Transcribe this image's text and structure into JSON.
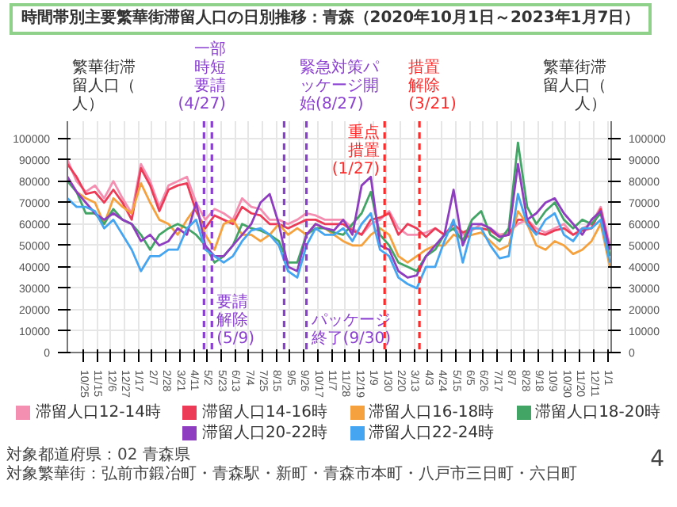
{
  "chart_data": {
    "type": "line",
    "title": "時間帯別主要繁華街滞留人口の日別推移：青森（2020年10月1日～2023年1月7日）",
    "ylabel": "繁華街滞留人口（人）",
    "y2label": "繁華街滞留人口（人）",
    "x": [
      "2020-10-01",
      "2020-10-15",
      "2020-10-29",
      "2020-11-12",
      "2020-11-26",
      "2020-12-10",
      "2020-12-24",
      "2021-01-07",
      "2021-01-21",
      "2021-02-04",
      "2021-02-18",
      "2021-03-04",
      "2021-03-18",
      "2021-04-01",
      "2021-04-15",
      "2021-04-29",
      "2021-05-13",
      "2021-05-27",
      "2021-06-10",
      "2021-06-24",
      "2021-07-08",
      "2021-07-22",
      "2021-08-05",
      "2021-08-19",
      "2021-09-02",
      "2021-09-16",
      "2021-09-30",
      "2021-10-14",
      "2021-10-28",
      "2021-11-11",
      "2021-11-25",
      "2021-12-09",
      "2021-12-23",
      "2022-01-06",
      "2022-01-20",
      "2022-02-03",
      "2022-02-17",
      "2022-03-03",
      "2022-03-17",
      "2022-03-31",
      "2022-04-14",
      "2022-04-28",
      "2022-05-12",
      "2022-05-26",
      "2022-06-09",
      "2022-06-23",
      "2022-07-07",
      "2022-07-21",
      "2022-08-04",
      "2022-08-18",
      "2022-09-01",
      "2022-09-15",
      "2022-09-29",
      "2022-10-13",
      "2022-10-27",
      "2022-11-10",
      "2022-11-24",
      "2022-12-08",
      "2022-12-22",
      "2023-01-05"
    ],
    "series": [
      {
        "name": "滞留人口12-14時",
        "color": "#f48fb1",
        "values": [
          90000,
          80000,
          75000,
          78000,
          72000,
          80000,
          72000,
          65000,
          88000,
          80000,
          68000,
          78000,
          80000,
          82000,
          70000,
          62000,
          67000,
          65000,
          62000,
          72000,
          68000,
          67000,
          62000,
          62000,
          60000,
          62000,
          65000,
          64000,
          62000,
          62000,
          62000,
          58000,
          55000,
          60000,
          62000,
          66000,
          58000,
          55000,
          55000,
          56000,
          58000,
          55000,
          58000,
          55000,
          57000,
          60000,
          58000,
          55000,
          56000,
          60000,
          62000,
          58000,
          56000,
          58000,
          60000,
          55000,
          58000,
          60000,
          68000,
          50000
        ]
      },
      {
        "name": "滞留人口14-16時",
        "color": "#ec3b57",
        "values": [
          88000,
          82000,
          74000,
          75000,
          70000,
          76000,
          70000,
          62000,
          86000,
          78000,
          66000,
          76000,
          78000,
          79000,
          66000,
          58000,
          64000,
          62000,
          60000,
          68000,
          65000,
          64000,
          60000,
          60000,
          58000,
          60000,
          62000,
          62000,
          60000,
          60000,
          60000,
          57000,
          55000,
          62000,
          63000,
          65000,
          55000,
          60000,
          58000,
          54000,
          58000,
          55000,
          60000,
          56000,
          58000,
          58000,
          57000,
          54000,
          55000,
          62000,
          62000,
          56000,
          55000,
          57000,
          58000,
          55000,
          57000,
          58000,
          67000,
          48000
        ]
      },
      {
        "name": "滞留人口16-18時",
        "color": "#f5a23e",
        "values": [
          82000,
          75000,
          72000,
          70000,
          60000,
          72000,
          68000,
          65000,
          79000,
          70000,
          62000,
          60000,
          55000,
          62000,
          68000,
          55000,
          48000,
          60000,
          62000,
          55000,
          55000,
          52000,
          55000,
          60000,
          55000,
          58000,
          55000,
          60000,
          58000,
          55000,
          52000,
          50000,
          50000,
          55000,
          58000,
          55000,
          45000,
          42000,
          45000,
          48000,
          50000,
          50000,
          55000,
          53000,
          55000,
          56000,
          52000,
          48000,
          50000,
          66000,
          60000,
          50000,
          48000,
          52000,
          50000,
          46000,
          48000,
          52000,
          60000,
          40000
        ]
      },
      {
        "name": "滞留人口18-20時",
        "color": "#43a565",
        "values": [
          80000,
          75000,
          65000,
          65000,
          60000,
          67000,
          62000,
          60000,
          55000,
          48000,
          55000,
          58000,
          60000,
          58000,
          55000,
          50000,
          42000,
          45000,
          50000,
          60000,
          58000,
          57000,
          55000,
          52000,
          42000,
          42000,
          55000,
          58000,
          58000,
          56000,
          55000,
          60000,
          65000,
          75000,
          55000,
          50000,
          42000,
          40000,
          38000,
          45000,
          48000,
          55000,
          58000,
          52000,
          62000,
          66000,
          55000,
          52000,
          58000,
          98000,
          68000,
          60000,
          66000,
          70000,
          62000,
          58000,
          62000,
          60000,
          65000,
          45000
        ]
      },
      {
        "name": "滞留人口20-22時",
        "color": "#8e3dc0",
        "values": [
          82000,
          75000,
          70000,
          65000,
          62000,
          65000,
          62000,
          60000,
          52000,
          55000,
          50000,
          52000,
          58000,
          55000,
          70000,
          50000,
          45000,
          45000,
          50000,
          55000,
          60000,
          70000,
          74000,
          60000,
          40000,
          38000,
          55000,
          60000,
          58000,
          57000,
          62000,
          55000,
          78000,
          82000,
          50000,
          48000,
          38000,
          35000,
          36000,
          45000,
          50000,
          55000,
          76000,
          50000,
          60000,
          60000,
          58000,
          54000,
          55000,
          88000,
          62000,
          65000,
          70000,
          72000,
          65000,
          60000,
          55000,
          62000,
          66000,
          48000
        ]
      },
      {
        "name": "滞留人口22-24時",
        "color": "#45a5f0",
        "values": [
          72000,
          68000,
          68000,
          66000,
          58000,
          62000,
          55000,
          48000,
          38000,
          45000,
          45000,
          48000,
          48000,
          58000,
          62000,
          48000,
          45000,
          42000,
          45000,
          52000,
          57000,
          58000,
          55000,
          50000,
          38000,
          35000,
          50000,
          58000,
          55000,
          55000,
          58000,
          52000,
          60000,
          65000,
          48000,
          45000,
          35000,
          32000,
          30000,
          40000,
          40000,
          52000,
          62000,
          42000,
          58000,
          58000,
          50000,
          44000,
          45000,
          74000,
          60000,
          55000,
          62000,
          65000,
          55000,
          52000,
          58000,
          58000,
          62000,
          42000
        ]
      }
    ],
    "xlim": [
      "2020-10-01",
      "2023-01-07"
    ],
    "xticks": [
      {
        "value": "2020-10-25",
        "label": "10/25"
      },
      {
        "value": "2020-11-15",
        "label": "11/15"
      },
      {
        "value": "2020-12-06",
        "label": "12/6"
      },
      {
        "value": "2020-12-27",
        "label": "12/27"
      },
      {
        "value": "2021-01-17",
        "label": "1/17"
      },
      {
        "value": "2021-02-07",
        "label": "2/7"
      },
      {
        "value": "2021-02-28",
        "label": "2/28"
      },
      {
        "value": "2021-03-21",
        "label": "3/21"
      },
      {
        "value": "2021-04-11",
        "label": "4/11"
      },
      {
        "value": "2021-05-02",
        "label": "5/2"
      },
      {
        "value": "2021-05-23",
        "label": "5/23"
      },
      {
        "value": "2021-06-13",
        "label": "6/13"
      },
      {
        "value": "2021-07-04",
        "label": "7/4"
      },
      {
        "value": "2021-07-25",
        "label": "7/25"
      },
      {
        "value": "2021-08-15",
        "label": "8/15"
      },
      {
        "value": "2021-09-05",
        "label": "9/5"
      },
      {
        "value": "2021-09-26",
        "label": "9/26"
      },
      {
        "value": "2021-10-17",
        "label": "10/17"
      },
      {
        "value": "2021-11-07",
        "label": "11/7"
      },
      {
        "value": "2021-11-28",
        "label": "11/28"
      },
      {
        "value": "2021-12-19",
        "label": "12/19"
      },
      {
        "value": "2022-01-09",
        "label": "1/9"
      },
      {
        "value": "2022-01-30",
        "label": "1/30"
      },
      {
        "value": "2022-02-20",
        "label": "2/20"
      },
      {
        "value": "2022-03-13",
        "label": "3/13"
      },
      {
        "value": "2022-04-03",
        "label": "4/3"
      },
      {
        "value": "2022-04-24",
        "label": "4/24"
      },
      {
        "value": "2022-05-15",
        "label": "5/15"
      },
      {
        "value": "2022-06-05",
        "label": "6/5"
      },
      {
        "value": "2022-06-26",
        "label": "6/26"
      },
      {
        "value": "2022-07-17",
        "label": "7/17"
      },
      {
        "value": "2022-08-07",
        "label": "8/7"
      },
      {
        "value": "2022-08-28",
        "label": "8/28"
      },
      {
        "value": "2022-09-18",
        "label": "9/18"
      },
      {
        "value": "2022-10-09",
        "label": "10/9"
      },
      {
        "value": "2022-10-30",
        "label": "10/30"
      },
      {
        "value": "2022-11-20",
        "label": "11/20"
      },
      {
        "value": "2022-12-11",
        "label": "12/11"
      },
      {
        "value": "2023-01-01",
        "label": "1/1"
      }
    ],
    "ylim": [
      0,
      108000
    ],
    "yticks": [
      0,
      10000,
      20000,
      30000,
      40000,
      50000,
      60000,
      70000,
      80000,
      90000,
      100000
    ],
    "y2lim": [
      0,
      108000
    ],
    "y2ticks": [
      0,
      10000,
      20000,
      30000,
      40000,
      50000,
      60000,
      70000,
      80000,
      90000,
      100000
    ],
    "ref_lines": [
      {
        "axis": "x",
        "value": "2021-04-27",
        "label": "一部時短要請(4/27)",
        "color": "#8a3fd1",
        "line_style": "dashed"
      },
      {
        "axis": "x",
        "value": "2021-05-09",
        "label": "要請解除(5/9)",
        "color": "#8a3fd1",
        "line_style": "dashed"
      },
      {
        "axis": "x",
        "value": "2021-08-27",
        "label": "緊急対策パッケージ開始(8/27)",
        "color": "#8a3fd1",
        "line_style": "dashed"
      },
      {
        "axis": "x",
        "value": "2021-09-30",
        "label": "パッケージ終了(9/30)",
        "color": "#8a3fd1",
        "line_style": "dashed"
      },
      {
        "axis": "x",
        "value": "2022-01-27",
        "label": "重点措置(1/27)",
        "color": "#ff2a2a",
        "line_style": "dashed"
      },
      {
        "axis": "x",
        "value": "2022-03-21",
        "label": "措置解除(3/21)",
        "color": "#ff2a2a",
        "line_style": "dashed"
      }
    ],
    "annotations": [
      "対象都道府県：02 青森県",
      "対象繁華街：弘前市鍛冶町・青森駅・新町・青森市本町・八戸市三日町・六日町",
      "4"
    ],
    "grid": true,
    "legend": "bottom",
    "marker": "none",
    "line_style": "solid"
  }
}
